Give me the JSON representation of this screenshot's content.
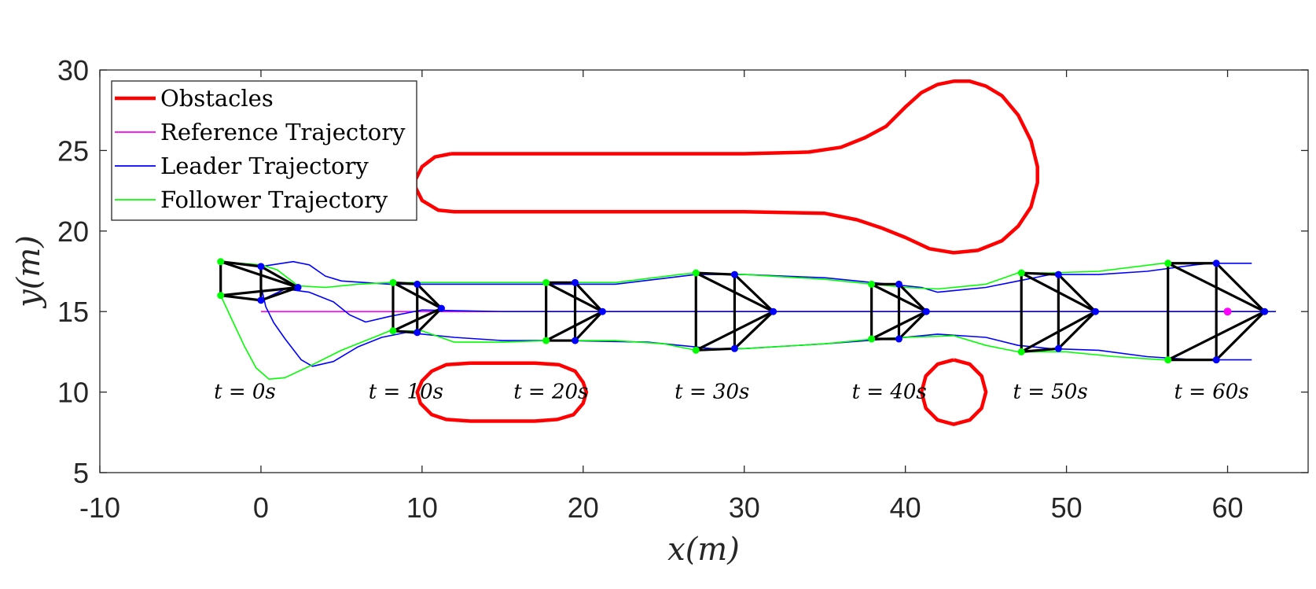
{
  "chart_data": {
    "type": "line",
    "xlabel": "x(m)",
    "ylabel": "y(m)",
    "xlim": [
      -10,
      65
    ],
    "ylim": [
      5,
      30
    ],
    "xticks": [
      "-10",
      "0",
      "10",
      "20",
      "30",
      "40",
      "50",
      "60"
    ],
    "yticks": [
      "5",
      "10",
      "15",
      "20",
      "25",
      "30"
    ],
    "legend_position": "top-left",
    "legend": [
      {
        "label": "Obstacles",
        "color": "#ff0000"
      },
      {
        "label": "Reference Trajectory",
        "color": "#ff00ff"
      },
      {
        "label": "Leader Trajectory",
        "color": "#0000ff"
      },
      {
        "label": "Follower Trajectory",
        "color": "#00ff00"
      }
    ],
    "colors": {
      "obstacle": "#ff0000",
      "reference": "#ff00ff",
      "leader": "#0000ff",
      "follower": "#00ff00",
      "formation": "#000000"
    },
    "time_labels": [
      {
        "text": "t = 0s",
        "x": -1,
        "y": 10
      },
      {
        "text": "t = 10s",
        "x": 9,
        "y": 10
      },
      {
        "text": "t = 20s",
        "x": 18,
        "y": 10
      },
      {
        "text": "t = 30s",
        "x": 28,
        "y": 10
      },
      {
        "text": "t = 40s",
        "x": 39,
        "y": 10
      },
      {
        "text": "t = 50s",
        "x": 49,
        "y": 10
      },
      {
        "text": "t = 60s",
        "x": 59,
        "y": 10
      }
    ],
    "obstacles": [
      {
        "name": "keyhole",
        "points": [
          [
            11.8,
            24.8
          ],
          [
            20,
            24.8
          ],
          [
            30,
            24.8
          ],
          [
            34,
            24.9
          ],
          [
            36,
            25.2
          ],
          [
            37.5,
            25.8
          ],
          [
            38.8,
            26.5
          ],
          [
            40,
            27.7
          ],
          [
            41,
            28.6
          ],
          [
            42,
            29.1
          ],
          [
            43,
            29.3
          ],
          [
            44,
            29.3
          ],
          [
            45,
            29.0
          ],
          [
            46,
            28.4
          ],
          [
            47,
            27.2
          ],
          [
            47.8,
            25.6
          ],
          [
            48.2,
            24
          ],
          [
            48.2,
            23
          ],
          [
            47.8,
            21.5
          ],
          [
            47,
            20.3
          ],
          [
            46,
            19.4
          ],
          [
            44.5,
            18.8
          ],
          [
            43,
            18.65
          ],
          [
            41.5,
            18.9
          ],
          [
            40,
            19.6
          ],
          [
            38.5,
            20.2
          ],
          [
            37,
            20.7
          ],
          [
            35,
            21.1
          ],
          [
            30,
            21.2
          ],
          [
            20,
            21.2
          ],
          [
            12,
            21.2
          ],
          [
            11,
            21.3
          ],
          [
            10,
            21.9
          ],
          [
            9.6,
            22.7
          ],
          [
            9.6,
            23.2
          ],
          [
            10,
            24
          ],
          [
            10.8,
            24.6
          ],
          [
            11.8,
            24.8
          ]
        ]
      },
      {
        "name": "rounded-rect",
        "points": [
          [
            13,
            11.8
          ],
          [
            17,
            11.8
          ],
          [
            18.5,
            11.7
          ],
          [
            19.5,
            11.3
          ],
          [
            20,
            10.6
          ],
          [
            20.2,
            10
          ],
          [
            20,
            9.3
          ],
          [
            19.4,
            8.6
          ],
          [
            18.4,
            8.3
          ],
          [
            17,
            8.2
          ],
          [
            13,
            8.2
          ],
          [
            11.5,
            8.3
          ],
          [
            10.6,
            8.6
          ],
          [
            9.9,
            9.3
          ],
          [
            9.7,
            10
          ],
          [
            10,
            10.7
          ],
          [
            10.6,
            11.3
          ],
          [
            11.5,
            11.7
          ],
          [
            13,
            11.8
          ]
        ]
      },
      {
        "name": "circle",
        "center": [
          43,
          10
        ],
        "radius": 2
      }
    ],
    "reference": [
      [
        0,
        15
      ],
      [
        62,
        15
      ]
    ],
    "leader": [
      [
        [
          0,
          15.7
        ],
        [
          1.5,
          16.4
        ],
        [
          3,
          16.2
        ],
        [
          4.5,
          15.6
        ],
        [
          5.5,
          14.8
        ],
        [
          6.5,
          14.35
        ],
        [
          8,
          14.7
        ],
        [
          10,
          15.1
        ],
        [
          15,
          15.0
        ],
        [
          20,
          15.0
        ],
        [
          30,
          15.0
        ],
        [
          40,
          15.0
        ],
        [
          50,
          15.0
        ],
        [
          60,
          15.0
        ],
        [
          63,
          15.0
        ]
      ],
      [
        [
          0,
          17.8
        ],
        [
          2,
          18.1
        ],
        [
          3,
          17.9
        ],
        [
          4,
          17.2
        ],
        [
          5,
          16.9
        ],
        [
          8,
          16.7
        ],
        [
          12,
          16.7
        ],
        [
          18,
          16.7
        ],
        [
          22,
          16.7
        ],
        [
          27,
          17.3
        ],
        [
          30,
          17.3
        ],
        [
          35,
          17.1
        ],
        [
          39,
          16.7
        ],
        [
          41,
          16.5
        ],
        [
          42,
          16.2
        ],
        [
          43,
          16.3
        ],
        [
          45,
          16.5
        ],
        [
          47,
          16.9
        ],
        [
          49,
          17.3
        ],
        [
          52,
          17.3
        ],
        [
          55,
          17.5
        ],
        [
          58,
          17.9
        ],
        [
          59,
          18.0
        ],
        [
          61.5,
          18.0
        ]
      ],
      [
        [
          0,
          16.6
        ],
        [
          0.3,
          15.3
        ],
        [
          0.8,
          14.3
        ],
        [
          1.5,
          13.3
        ],
        [
          2.5,
          12.0
        ],
        [
          3.2,
          11.6
        ],
        [
          4.5,
          11.9
        ],
        [
          6,
          12.8
        ],
        [
          7.5,
          13.4
        ],
        [
          9,
          13.7
        ],
        [
          12,
          13.4
        ],
        [
          15,
          13.2
        ],
        [
          19,
          13.2
        ],
        [
          24,
          13.1
        ],
        [
          28,
          12.7
        ],
        [
          30,
          12.7
        ],
        [
          35,
          13.0
        ],
        [
          39,
          13.3
        ],
        [
          41,
          13.5
        ],
        [
          42,
          13.6
        ],
        [
          45,
          13.4
        ],
        [
          47,
          12.9
        ],
        [
          49,
          12.7
        ],
        [
          52,
          12.6
        ],
        [
          55,
          12.2
        ],
        [
          58,
          12.0
        ],
        [
          61.5,
          12.0
        ]
      ]
    ],
    "follower": [
      [
        [
          -2.5,
          18.1
        ],
        [
          0,
          17.9
        ],
        [
          1,
          17.6
        ],
        [
          2.3,
          16.6
        ],
        [
          4,
          16.5
        ],
        [
          6,
          16.7
        ],
        [
          8,
          16.8
        ],
        [
          12,
          16.8
        ],
        [
          17,
          16.8
        ],
        [
          22,
          16.8
        ],
        [
          26,
          17.3
        ],
        [
          27,
          17.4
        ],
        [
          30,
          17.3
        ],
        [
          35,
          17.0
        ],
        [
          38,
          16.7
        ],
        [
          40,
          16.5
        ],
        [
          42,
          16.4
        ],
        [
          45,
          16.7
        ],
        [
          47,
          17.4
        ],
        [
          49,
          17.4
        ],
        [
          52,
          17.5
        ],
        [
          56,
          18.0
        ],
        [
          59.5,
          18.0
        ]
      ],
      [
        [
          -2.5,
          16.0
        ],
        [
          -1.8,
          14.5
        ],
        [
          -1,
          12.8
        ],
        [
          -0.3,
          11.5
        ],
        [
          0.5,
          10.8
        ],
        [
          1.5,
          10.9
        ],
        [
          3,
          11.6
        ],
        [
          5,
          12.6
        ],
        [
          7,
          13.4
        ],
        [
          8,
          13.8
        ],
        [
          10,
          13.8
        ],
        [
          12,
          13.1
        ],
        [
          15,
          13.1
        ],
        [
          18,
          13.2
        ],
        [
          22,
          13.2
        ],
        [
          25,
          13.0
        ],
        [
          27,
          12.6
        ],
        [
          30,
          12.7
        ],
        [
          35,
          13.0
        ],
        [
          38,
          13.3
        ],
        [
          40,
          13.4
        ],
        [
          43,
          13.5
        ],
        [
          45,
          12.9
        ],
        [
          47,
          12.5
        ],
        [
          50,
          12.5
        ],
        [
          53,
          12.2
        ],
        [
          56,
          12.0
        ],
        [
          59.5,
          12.0
        ]
      ]
    ],
    "formations": [
      {
        "t": 0,
        "leader": [
          [
            0,
            17.8
          ],
          [
            2.3,
            16.5
          ],
          [
            0,
            15.7
          ]
        ],
        "follower": [
          [
            -2.5,
            18.1
          ],
          [
            -2.5,
            16.0
          ]
        ]
      },
      {
        "t": 10,
        "leader": [
          [
            9.7,
            16.7
          ],
          [
            11.2,
            15.2
          ],
          [
            9.7,
            13.7
          ]
        ],
        "follower": [
          [
            8.2,
            16.8
          ],
          [
            8.2,
            13.8
          ]
        ]
      },
      {
        "t": 20,
        "leader": [
          [
            19.5,
            16.8
          ],
          [
            21.2,
            15.0
          ],
          [
            19.5,
            13.2
          ]
        ],
        "follower": [
          [
            17.7,
            16.8
          ],
          [
            17.7,
            13.2
          ]
        ]
      },
      {
        "t": 30,
        "leader": [
          [
            29.4,
            17.3
          ],
          [
            31.8,
            15.0
          ],
          [
            29.4,
            12.7
          ]
        ],
        "follower": [
          [
            27,
            17.4
          ],
          [
            27,
            12.6
          ]
        ]
      },
      {
        "t": 40,
        "leader": [
          [
            39.6,
            16.7
          ],
          [
            41.3,
            15.0
          ],
          [
            39.6,
            13.3
          ]
        ],
        "follower": [
          [
            37.9,
            16.7
          ],
          [
            37.9,
            13.3
          ]
        ]
      },
      {
        "t": 50,
        "leader": [
          [
            49.5,
            17.3
          ],
          [
            51.8,
            15.0
          ],
          [
            49.5,
            12.7
          ]
        ],
        "follower": [
          [
            47.2,
            17.4
          ],
          [
            47.2,
            12.5
          ]
        ]
      },
      {
        "t": 60,
        "leader": [
          [
            59.3,
            18.0
          ],
          [
            62.3,
            15.0
          ],
          [
            59.3,
            12.0
          ]
        ],
        "follower": [
          [
            56.3,
            18.0
          ],
          [
            56.3,
            12.0
          ]
        ]
      }
    ],
    "reference_marker": [
      60,
      15
    ]
  }
}
